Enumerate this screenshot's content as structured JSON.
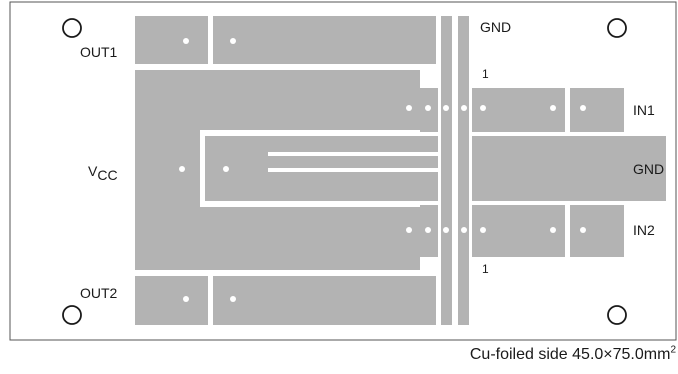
{
  "colors": {
    "copper": "#b3b3b3",
    "trace_gap": "#ffffff",
    "outline": "#555555",
    "via": "#ffffff",
    "text": "#1a1a1a"
  },
  "labels": {
    "out1": "OUT1",
    "out2": "OUT2",
    "vcc_main": "V",
    "vcc_sub": "CC",
    "gnd_top": "GND",
    "gnd_right": "GND",
    "in1": "IN1",
    "in2": "IN2",
    "pin1_top": "1",
    "pin1_bottom": "1"
  },
  "caption": {
    "text": "Cu-foiled side 45.0×75.0mm",
    "sup": "2"
  }
}
